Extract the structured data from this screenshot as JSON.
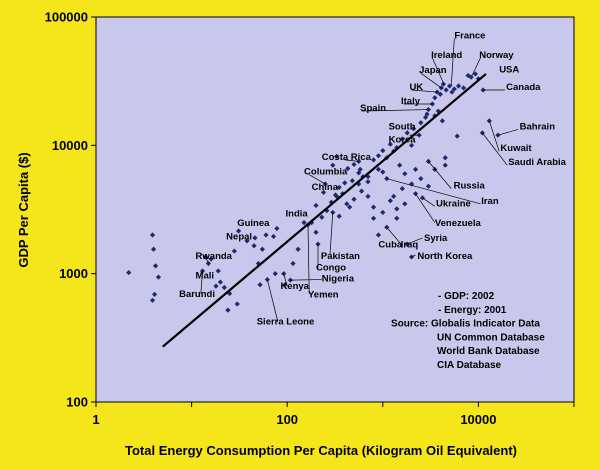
{
  "chart_data": {
    "type": "scatter",
    "xlabel": "Total Energy Consumption Per Capita (Kilogram Oil Equivalent)",
    "ylabel": "GDP Per Capita ($)",
    "xscale": "log",
    "yscale": "log",
    "xlim": [
      1,
      100000
    ],
    "ylim": [
      100,
      100000
    ],
    "x_ticks": [
      "1",
      "100",
      "10000"
    ],
    "y_ticks": [
      "100",
      "1000",
      "10000",
      "100000"
    ],
    "grid": false,
    "colors": {
      "background": "#f5e61c",
      "plot": "#c9c8ec",
      "point": "#1f2a6e",
      "trend": "#000000"
    },
    "trendline": {
      "x": [
        5,
        12000
      ],
      "y": [
        270,
        36000
      ]
    },
    "annotations": [
      {
        "text": "France",
        "x": 5600,
        "y": 68000
      },
      {
        "text": "Ireland",
        "x": 3200,
        "y": 48000
      },
      {
        "text": "Norway",
        "x": 10200,
        "y": 48000
      },
      {
        "text": "USA",
        "x": 16500,
        "y": 37000
      },
      {
        "text": "Japan",
        "x": 2400,
        "y": 36500
      },
      {
        "text": "UK",
        "x": 1900,
        "y": 27000
      },
      {
        "text": "Canada",
        "x": 19500,
        "y": 27000
      },
      {
        "text": "Italy",
        "x": 1550,
        "y": 21000
      },
      {
        "text": "Spain",
        "x": 580,
        "y": 18500
      },
      {
        "text": "South",
        "x": 1150,
        "y": 13300
      },
      {
        "text": "Korea",
        "x": 1150,
        "y": 10500
      },
      {
        "text": "Bahrain",
        "x": 27000,
        "y": 13300
      },
      {
        "text": "Kuwait",
        "x": 17000,
        "y": 9000
      },
      {
        "text": "Saudi Arabia",
        "x": 20500,
        "y": 7000
      },
      {
        "text": "Costa Rica",
        "x": 230,
        "y": 7700
      },
      {
        "text": "Columbia",
        "x": 150,
        "y": 5900
      },
      {
        "text": "Russia",
        "x": 5500,
        "y": 4600
      },
      {
        "text": "China",
        "x": 180,
        "y": 4500
      },
      {
        "text": "Iran",
        "x": 10700,
        "y": 3500
      },
      {
        "text": "Ukraine",
        "x": 3600,
        "y": 3350
      },
      {
        "text": "India",
        "x": 96,
        "y": 2800
      },
      {
        "text": "Guinea",
        "x": 30,
        "y": 2350
      },
      {
        "text": "Venezuela",
        "x": 3500,
        "y": 2350
      },
      {
        "text": "Syria",
        "x": 2700,
        "y": 1800
      },
      {
        "text": "Nepal",
        "x": 23,
        "y": 1850
      },
      {
        "text": "Cuba",
        "x": 900,
        "y": 1600
      },
      {
        "text": "Iraq",
        "x": 1540,
        "y": 1600
      },
      {
        "text": "Pakistan",
        "x": 225,
        "y": 1300
      },
      {
        "text": "North Korea",
        "x": 2300,
        "y": 1300
      },
      {
        "text": "Rwanda",
        "x": 11,
        "y": 1300
      },
      {
        "text": "Congo",
        "x": 200,
        "y": 1060
      },
      {
        "text": "Mali",
        "x": 11,
        "y": 920
      },
      {
        "text": "Nigeria",
        "x": 230,
        "y": 870
      },
      {
        "text": "Kenya",
        "x": 85,
        "y": 760
      },
      {
        "text": "Yemen",
        "x": 165,
        "y": 650
      },
      {
        "text": "Barundi",
        "x": 7.4,
        "y": 660
      },
      {
        "text": "Sierra Leone",
        "x": 48,
        "y": 400
      }
    ],
    "notes": [
      "- GDP: 2002",
      "- Energy: 2001",
      "Source: Globalis Indicator Data",
      "UN Common Database",
      "World Bank Database",
      "CIA Database"
    ],
    "points": [
      {
        "x": 2.2,
        "y": 1020
      },
      {
        "x": 3.9,
        "y": 2000
      },
      {
        "x": 4,
        "y": 1550
      },
      {
        "x": 4.2,
        "y": 1150
      },
      {
        "x": 4.5,
        "y": 940
      },
      {
        "x": 4.1,
        "y": 690
      },
      {
        "x": 3.9,
        "y": 620
      },
      {
        "x": 13,
        "y": 1050
      },
      {
        "x": 15,
        "y": 1200
      },
      {
        "x": 14,
        "y": 1350
      },
      {
        "x": 16,
        "y": 1300
      },
      {
        "x": 19,
        "y": 1050
      },
      {
        "x": 20,
        "y": 860
      },
      {
        "x": 22,
        "y": 780
      },
      {
        "x": 18,
        "y": 800
      },
      {
        "x": 25,
        "y": 700
      },
      {
        "x": 24,
        "y": 520
      },
      {
        "x": 30,
        "y": 580
      },
      {
        "x": 28,
        "y": 1500
      },
      {
        "x": 31,
        "y": 2150
      },
      {
        "x": 38,
        "y": 1800
      },
      {
        "x": 45,
        "y": 1650
      },
      {
        "x": 46,
        "y": 1900
      },
      {
        "x": 50,
        "y": 1200
      },
      {
        "x": 55,
        "y": 1550
      },
      {
        "x": 60,
        "y": 2000
      },
      {
        "x": 72,
        "y": 1950
      },
      {
        "x": 78,
        "y": 2250
      },
      {
        "x": 52,
        "y": 820
      },
      {
        "x": 62,
        "y": 900
      },
      {
        "x": 75,
        "y": 1000
      },
      {
        "x": 92,
        "y": 1000
      },
      {
        "x": 95,
        "y": 820
      },
      {
        "x": 108,
        "y": 890
      },
      {
        "x": 115,
        "y": 1200
      },
      {
        "x": 130,
        "y": 1550
      },
      {
        "x": 150,
        "y": 2500
      },
      {
        "x": 180,
        "y": 2500
      },
      {
        "x": 200,
        "y": 2100
      },
      {
        "x": 230,
        "y": 2750
      },
      {
        "x": 260,
        "y": 3100
      },
      {
        "x": 290,
        "y": 3600
      },
      {
        "x": 320,
        "y": 4100
      },
      {
        "x": 350,
        "y": 4700
      },
      {
        "x": 400,
        "y": 5100
      },
      {
        "x": 430,
        "y": 6600
      },
      {
        "x": 500,
        "y": 7100
      },
      {
        "x": 560,
        "y": 6100
      },
      {
        "x": 620,
        "y": 5700
      },
      {
        "x": 700,
        "y": 5200
      },
      {
        "x": 800,
        "y": 7700
      },
      {
        "x": 900,
        "y": 8300
      },
      {
        "x": 1000,
        "y": 9100
      },
      {
        "x": 1200,
        "y": 10200
      },
      {
        "x": 1400,
        "y": 9600
      },
      {
        "x": 1600,
        "y": 11200
      },
      {
        "x": 1800,
        "y": 12500
      },
      {
        "x": 2100,
        "y": 13500
      },
      {
        "x": 2500,
        "y": 15000
      },
      {
        "x": 2800,
        "y": 16500
      },
      {
        "x": 3000,
        "y": 19000
      },
      {
        "x": 3300,
        "y": 21000
      },
      {
        "x": 3500,
        "y": 23500
      },
      {
        "x": 3700,
        "y": 26000
      },
      {
        "x": 4000,
        "y": 25000
      },
      {
        "x": 4100,
        "y": 28000
      },
      {
        "x": 4300,
        "y": 30000
      },
      {
        "x": 4600,
        "y": 27000
      },
      {
        "x": 5000,
        "y": 29000
      },
      {
        "x": 5300,
        "y": 26000
      },
      {
        "x": 5600,
        "y": 27500
      },
      {
        "x": 6200,
        "y": 29000
      },
      {
        "x": 7000,
        "y": 28000
      },
      {
        "x": 7800,
        "y": 35000
      },
      {
        "x": 8400,
        "y": 34000
      },
      {
        "x": 9300,
        "y": 36000
      },
      {
        "x": 10000,
        "y": 33000
      },
      {
        "x": 11200,
        "y": 27000
      },
      {
        "x": 16000,
        "y": 12000
      },
      {
        "x": 13000,
        "y": 15500
      },
      {
        "x": 11000,
        "y": 12500
      },
      {
        "x": 6000,
        "y": 11800
      },
      {
        "x": 4200,
        "y": 15500
      },
      {
        "x": 3800,
        "y": 18500
      },
      {
        "x": 3500,
        "y": 17000
      },
      {
        "x": 2900,
        "y": 17500
      },
      {
        "x": 2400,
        "y": 12000
      },
      {
        "x": 2000,
        "y": 10000
      },
      {
        "x": 1300,
        "y": 9000
      },
      {
        "x": 1100,
        "y": 8000
      },
      {
        "x": 1500,
        "y": 7000
      },
      {
        "x": 1700,
        "y": 6000
      },
      {
        "x": 2000,
        "y": 5000
      },
      {
        "x": 2200,
        "y": 6500
      },
      {
        "x": 2500,
        "y": 5500
      },
      {
        "x": 3000,
        "y": 7500
      },
      {
        "x": 3500,
        "y": 6500
      },
      {
        "x": 4500,
        "y": 7000
      },
      {
        "x": 4500,
        "y": 8000
      },
      {
        "x": 3000,
        "y": 4800
      },
      {
        "x": 2200,
        "y": 4200
      },
      {
        "x": 1600,
        "y": 4600
      },
      {
        "x": 1300,
        "y": 4000
      },
      {
        "x": 1100,
        "y": 5500
      },
      {
        "x": 1000,
        "y": 6200
      },
      {
        "x": 1200,
        "y": 3700
      },
      {
        "x": 1400,
        "y": 3200
      },
      {
        "x": 1000,
        "y": 3000
      },
      {
        "x": 800,
        "y": 3300
      },
      {
        "x": 700,
        "y": 4000
      },
      {
        "x": 600,
        "y": 4400
      },
      {
        "x": 500,
        "y": 3800
      },
      {
        "x": 450,
        "y": 3300
      },
      {
        "x": 380,
        "y": 4200
      },
      {
        "x": 330,
        "y": 4000
      },
      {
        "x": 300,
        "y": 3000
      },
      {
        "x": 350,
        "y": 2800
      },
      {
        "x": 420,
        "y": 3500
      },
      {
        "x": 480,
        "y": 5300
      },
      {
        "x": 560,
        "y": 5000
      },
      {
        "x": 700,
        "y": 5700
      },
      {
        "x": 900,
        "y": 6500
      },
      {
        "x": 580,
        "y": 6500
      },
      {
        "x": 800,
        "y": 2700
      },
      {
        "x": 1100,
        "y": 2300
      },
      {
        "x": 1400,
        "y": 2700
      },
      {
        "x": 1800,
        "y": 1700
      },
      {
        "x": 2000,
        "y": 1350
      },
      {
        "x": 900,
        "y": 2000
      },
      {
        "x": 1700,
        "y": 3500
      },
      {
        "x": 2600,
        "y": 3900
      },
      {
        "x": 250,
        "y": 5000
      },
      {
        "x": 200,
        "y": 3400
      },
      {
        "x": 165,
        "y": 2400
      },
      {
        "x": 210,
        "y": 1700
      },
      {
        "x": 240,
        "y": 4300
      },
      {
        "x": 300,
        "y": 7000
      },
      {
        "x": 330,
        "y": 8200
      },
      {
        "x": 560,
        "y": 7500
      }
    ]
  }
}
